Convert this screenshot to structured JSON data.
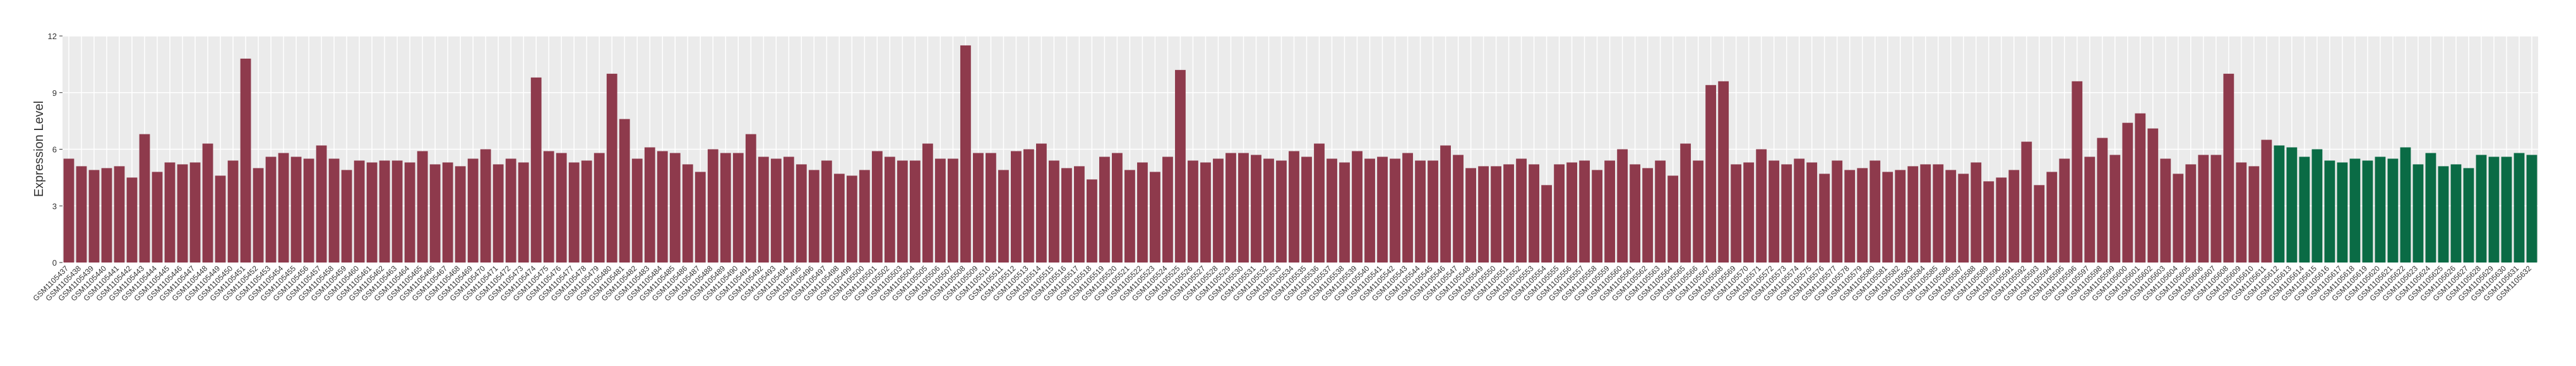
{
  "chart_data": {
    "type": "bar",
    "y_label": "Expression Level",
    "ylim": [
      0,
      12
    ],
    "yticks": [
      0,
      3,
      6,
      9,
      12
    ],
    "grid": true,
    "categories": [
      "GSM1105437",
      "GSM1105438",
      "GSM1105439",
      "GSM1105440",
      "GSM1105441",
      "GSM1105442",
      "GSM1105443",
      "GSM1105444",
      "GSM1105445",
      "GSM1105446",
      "GSM1105447",
      "GSM1105448",
      "GSM1105449",
      "GSM1105450",
      "GSM1105451",
      "GSM1105452",
      "GSM1105453",
      "GSM1105454",
      "GSM1105455",
      "GSM1105456",
      "GSM1105457",
      "GSM1105458",
      "GSM1105459",
      "GSM1105460",
      "GSM1105461",
      "GSM1105462",
      "GSM1105463",
      "GSM1105464",
      "GSM1105465",
      "GSM1105466",
      "GSM1105467",
      "GSM1105468",
      "GSM1105469",
      "GSM1105470",
      "GSM1105471",
      "GSM1105472",
      "GSM1105473",
      "GSM1105474",
      "GSM1105475",
      "GSM1105476",
      "GSM1105477",
      "GSM1105478",
      "GSM1105479",
      "GSM1105480",
      "GSM1105481",
      "GSM1105482",
      "GSM1105483",
      "GSM1105484",
      "GSM1105485",
      "GSM1105486",
      "GSM1105487",
      "GSM1105488",
      "GSM1105489",
      "GSM1105490",
      "GSM1105491",
      "GSM1105492",
      "GSM1105493",
      "GSM1105494",
      "GSM1105495",
      "GSM1105496",
      "GSM1105497",
      "GSM1105498",
      "GSM1105499",
      "GSM1105500",
      "GSM1105501",
      "GSM1105502",
      "GSM1105503",
      "GSM1105504",
      "GSM1105505",
      "GSM1105506",
      "GSM1105507",
      "GSM1105508",
      "GSM1105509",
      "GSM1105510",
      "GSM1105511",
      "GSM1105512",
      "GSM1105513",
      "GSM1105514",
      "GSM1105515",
      "GSM1105516",
      "GSM1105517",
      "GSM1105518",
      "GSM1105519",
      "GSM1105520",
      "GSM1105521",
      "GSM1105522",
      "GSM1105523",
      "GSM1105524",
      "GSM1105525",
      "GSM1105526",
      "GSM1105527",
      "GSM1105528",
      "GSM1105529",
      "GSM1105530",
      "GSM1105531",
      "GSM1105532",
      "GSM1105533",
      "GSM1105534",
      "GSM1105535",
      "GSM1105536",
      "GSM1105537",
      "GSM1105538",
      "GSM1105539",
      "GSM1105540",
      "GSM1105541",
      "GSM1105542",
      "GSM1105543",
      "GSM1105544",
      "GSM1105545",
      "GSM1105546",
      "GSM1105547",
      "GSM1105548",
      "GSM1105549",
      "GSM1105550",
      "GSM1105551",
      "GSM1105552",
      "GSM1105553",
      "GSM1105554",
      "GSM1105555",
      "GSM1105556",
      "GSM1105557",
      "GSM1105558",
      "GSM1105559",
      "GSM1105560",
      "GSM1105561",
      "GSM1105562",
      "GSM1105563",
      "GSM1105564",
      "GSM1105565",
      "GSM1105566",
      "GSM1105567",
      "GSM1105568",
      "GSM1105569",
      "GSM1105570",
      "GSM1105571",
      "GSM1105572",
      "GSM1105573",
      "GSM1105574",
      "GSM1105575",
      "GSM1105576",
      "GSM1105577",
      "GSM1105578",
      "GSM1105579",
      "GSM1105580",
      "GSM1105581",
      "GSM1105582",
      "GSM1105583",
      "GSM1105584",
      "GSM1105585",
      "GSM1105586",
      "GSM1105587",
      "GSM1105588",
      "GSM1105589",
      "GSM1105590",
      "GSM1105591",
      "GSM1105592",
      "GSM1105593",
      "GSM1105594",
      "GSM1105595",
      "GSM1105596",
      "GSM1105597",
      "GSM1105598",
      "GSM1105599",
      "GSM1105600",
      "GSM1105601",
      "GSM1105602",
      "GSM1105603",
      "GSM1105604",
      "GSM1105605",
      "GSM1105606",
      "GSM1105607",
      "GSM1105608",
      "GSM1105609",
      "GSM1105610",
      "GSM1105611",
      "GSM1105612",
      "GSM1105613",
      "GSM1105614",
      "GSM1105615",
      "GSM1105616",
      "GSM1105617",
      "GSM1105618",
      "GSM1105619",
      "GSM1105620",
      "GSM1105621",
      "GSM1105622",
      "GSM1105623",
      "GSM1105624",
      "GSM1105625",
      "GSM1105626",
      "GSM1105627",
      "GSM1105628",
      "GSM1105629",
      "GSM1105630",
      "GSM1105631",
      "GSM1105632"
    ],
    "groups": [
      {
        "color": "#8e3a4c",
        "values": [
          5.5,
          5.1,
          4.9,
          5.0,
          5.1,
          4.5,
          6.8,
          4.8,
          5.3,
          5.2,
          5.3,
          6.3,
          4.6,
          5.4,
          10.8,
          5.0,
          5.6,
          5.8,
          5.6,
          5.5,
          6.2,
          5.5,
          4.9,
          5.4,
          5.3,
          5.4,
          5.4,
          5.3,
          5.9,
          5.2,
          5.3,
          5.1,
          5.5,
          6.0,
          5.2,
          5.5,
          5.3,
          9.8,
          5.9,
          5.8,
          5.3,
          5.4,
          5.8,
          10.0,
          7.6,
          5.5,
          6.1,
          5.9,
          5.8,
          5.2,
          4.8,
          6.0,
          5.8,
          5.8,
          6.8,
          5.6,
          5.5,
          5.6,
          5.2,
          4.9,
          5.4,
          4.7,
          4.6,
          4.9,
          5.9,
          5.6,
          5.4,
          5.4,
          6.3,
          5.5,
          5.5,
          11.5,
          5.8,
          5.8,
          4.9,
          5.9,
          6.0,
          6.3,
          5.4,
          5.0,
          5.1,
          4.4,
          5.6,
          5.8,
          4.9,
          5.3,
          4.8,
          5.6,
          10.2,
          5.4,
          5.3,
          5.5,
          5.8,
          5.8,
          5.7,
          5.5,
          5.4,
          5.9,
          5.6,
          6.3,
          5.5,
          5.3,
          5.9,
          5.5,
          5.6,
          5.5,
          5.8,
          5.4,
          5.4,
          6.2,
          5.7,
          5.0,
          5.1,
          5.1,
          5.2,
          5.5,
          5.2,
          4.1,
          5.2,
          5.3,
          5.4,
          4.9,
          5.4,
          6.0,
          5.2,
          5.0,
          5.4,
          4.6,
          6.3,
          5.4,
          9.4,
          9.6,
          5.2,
          5.3,
          6.0,
          5.4,
          5.2,
          5.5,
          5.3,
          4.7,
          5.4,
          4.9,
          5.0,
          5.4,
          4.8,
          4.9,
          5.1,
          5.2,
          5.2,
          4.9,
          4.7,
          5.3,
          4.3,
          4.5,
          4.9,
          6.4,
          4.1,
          4.8,
          5.5,
          9.6,
          5.6,
          6.6,
          5.7,
          7.4,
          7.9,
          7.1,
          5.5,
          4.7,
          5.2,
          5.7,
          5.7,
          10.0,
          5.3,
          5.1,
          6.5
        ]
      },
      {
        "color": "#0a6b45",
        "values": [
          6.2,
          6.1,
          5.6,
          6.0,
          5.4,
          5.3,
          5.5,
          5.4,
          5.6,
          5.5,
          6.1,
          5.2,
          5.8,
          5.1,
          5.2,
          5.0,
          5.7,
          5.6,
          5.6,
          5.8,
          5.7
        ]
      }
    ]
  }
}
